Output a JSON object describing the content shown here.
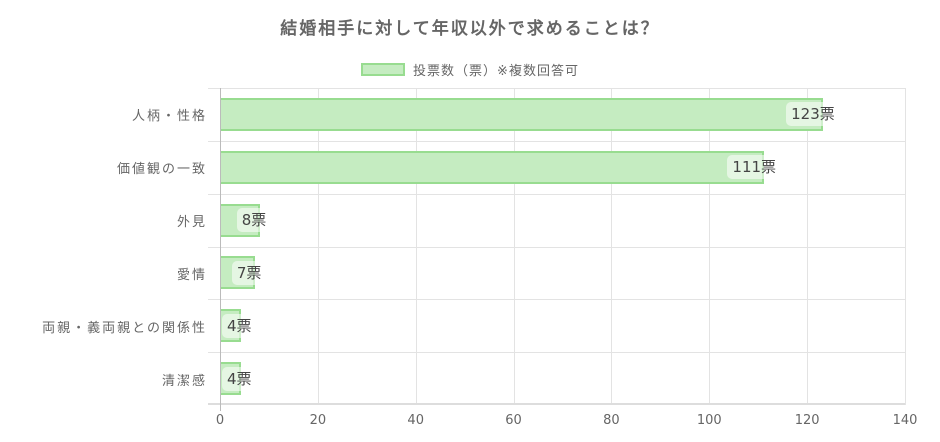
{
  "chart_data": {
    "type": "bar",
    "orientation": "horizontal",
    "title": "結婚相手に対して年収以外で求めることは？",
    "legend": [
      "投票数（票）※複数回答可"
    ],
    "legend_position": "top",
    "categories": [
      "人柄・性格",
      "価値観の一致",
      "外見",
      "愛情",
      "両親・義両親との関係性",
      "清潔感"
    ],
    "series": [
      {
        "name": "投票数（票）※複数回答可",
        "values": [
          123,
          111,
          8,
          7,
          4,
          4
        ]
      }
    ],
    "data_labels": [
      "123票",
      "111票",
      "8票",
      "7票",
      "4票",
      "4票"
    ],
    "xlabel": "",
    "ylabel": "",
    "xlim": [
      0,
      140
    ],
    "x_ticks": [
      "0",
      "20",
      "40",
      "60",
      "80",
      "100",
      "120",
      "140"
    ],
    "grid": true,
    "colors": {
      "bar_fill": "#c5ecc1",
      "bar_border": "#98dc90"
    }
  }
}
